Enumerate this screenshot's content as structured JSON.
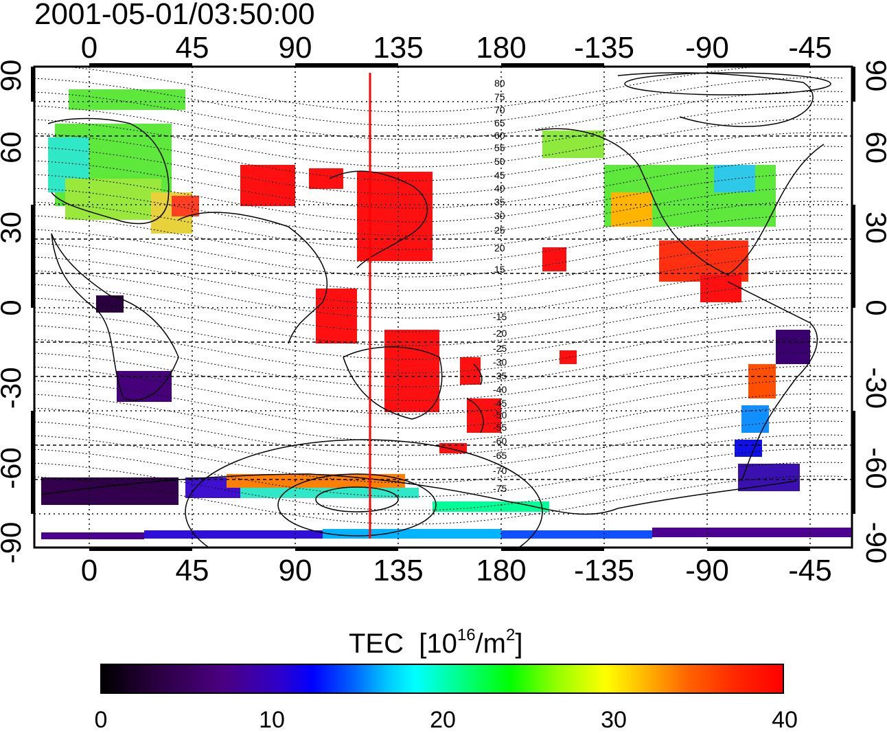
{
  "title": "2001-05-01/03:50:00",
  "map": {
    "lon_ticks": [
      "0",
      "45",
      "90",
      "135",
      "180",
      "-135",
      "-90",
      "-45"
    ],
    "lat_ticks": [
      "90",
      "60",
      "30",
      "0",
      "-30",
      "-60",
      "-90"
    ],
    "contour_labels_north": [
      "80",
      "75",
      "70",
      "65",
      "60",
      "55",
      "50",
      "45",
      "40",
      "35",
      "30",
      "25",
      "20",
      "15"
    ],
    "contour_labels_south": [
      "-15",
      "-20",
      "-25",
      "-30",
      "-35",
      "-40",
      "-45",
      "-50",
      "-55",
      "-60",
      "-65",
      "-70",
      "-75"
    ],
    "red_line_longitude": 123,
    "colors": {
      "line": "#ff0000",
      "grid": "#000000"
    }
  },
  "colorbar": {
    "title": "TEC",
    "unit_prefix": "[10",
    "unit_exp": "16",
    "unit_mid": "/m",
    "unit_exp2": "2",
    "unit_suffix": "]",
    "ticks": [
      "0",
      "10",
      "20",
      "30",
      "40"
    ],
    "min": 0,
    "max": 40
  }
}
